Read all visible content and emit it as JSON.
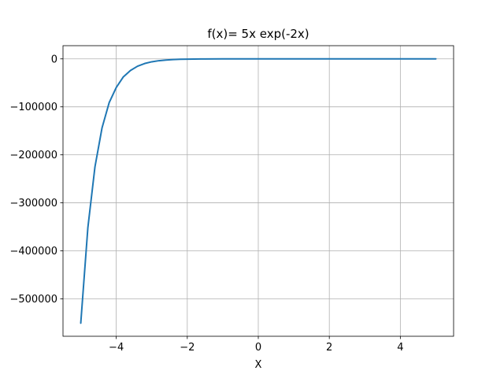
{
  "chart_data": {
    "type": "line",
    "title": "f(x)= 5x exp(-2x)",
    "xlabel": "X",
    "ylabel": "",
    "xlim": [
      -5.5,
      5.5
    ],
    "ylim": [
      -578000,
      27500
    ],
    "grid": true,
    "xticks": [
      -4,
      -2,
      0,
      2,
      4
    ],
    "xtick_labels": [
      "−4",
      "−2",
      "0",
      "2",
      "4"
    ],
    "yticks": [
      0,
      -100000,
      -200000,
      -300000,
      -400000,
      -500000
    ],
    "ytick_labels": [
      "0",
      "−100000",
      "−200000",
      "−300000",
      "−400000",
      "−500000"
    ],
    "series": [
      {
        "color": "#1f77b4",
        "x": [
          -5.0,
          -4.8,
          -4.6,
          -4.4,
          -4.2,
          -4.0,
          -3.8,
          -3.6,
          -3.4,
          -3.2,
          -3.0,
          -2.8,
          -2.6,
          -2.4,
          -2.2,
          -2.0,
          -1.5,
          -1.0,
          -0.5,
          0.0,
          1.0,
          2.0,
          3.0,
          4.0,
          5.0
        ],
        "y": [
          -550665,
          -352000,
          -225000,
          -143500,
          -91200,
          -59616,
          -37500,
          -24200,
          -15300,
          -9650,
          -6051,
          -3800,
          -2370,
          -1460,
          -897,
          -546,
          -151,
          -37,
          -7,
          0,
          1,
          0,
          0,
          0,
          0
        ]
      }
    ]
  }
}
